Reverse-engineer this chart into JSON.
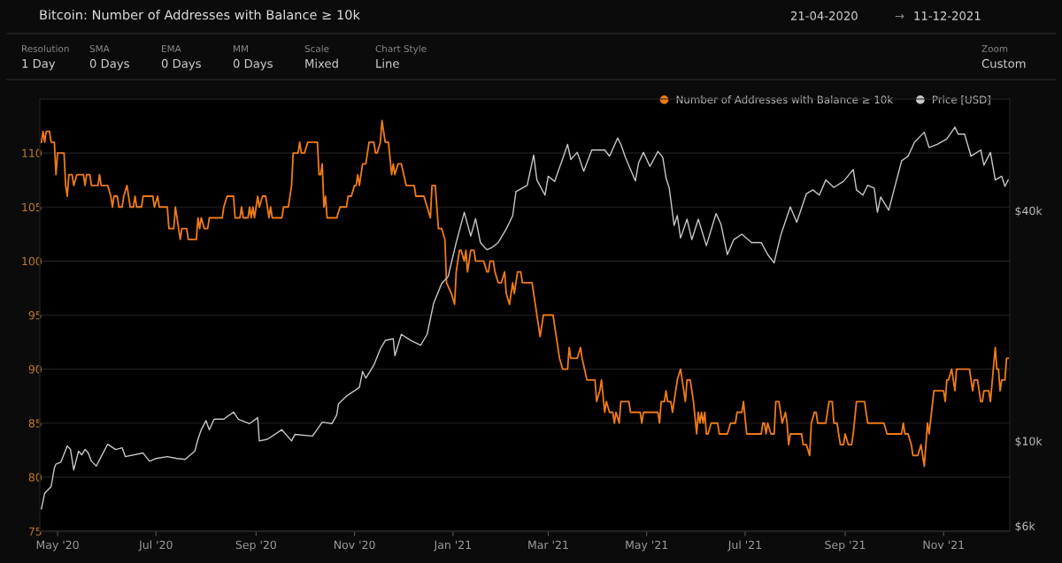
{
  "chart_data": {
    "type": "line",
    "title": "Bitcoin: Number of Addresses with Balance ≥ 10k",
    "annotations": [
      "21-04-2020",
      "→",
      "11-12-2021",
      "Resolution",
      "1 Day",
      "SMA",
      "0 Days",
      "EMA",
      "0 Days",
      "MM",
      "0 Days",
      "Scale",
      "Mixed",
      "Chart Style",
      "Line",
      "Zoom",
      "Custom"
    ],
    "xlim": [
      "2020-04-20",
      "2021-12-12"
    ],
    "xticks": [
      {
        "value": "2020-05-01",
        "label": "May '20"
      },
      {
        "value": "2020-07-01",
        "label": "Jul '20"
      },
      {
        "value": "2020-09-01",
        "label": "Sep '20"
      },
      {
        "value": "2020-11-01",
        "label": "Nov '20"
      },
      {
        "value": "2021-01-01",
        "label": "Jan '21"
      },
      {
        "value": "2021-03-01",
        "label": "Mar '21"
      },
      {
        "value": "2021-05-01",
        "label": "May '21"
      },
      {
        "value": "2021-07-01",
        "label": "Jul '21"
      },
      {
        "value": "2021-09-01",
        "label": "Sep '21"
      },
      {
        "value": "2021-11-01",
        "label": "Nov '21"
      }
    ],
    "ylim": [
      75,
      115
    ],
    "yticks": [
      75,
      80,
      85,
      90,
      95,
      100,
      105,
      110,
      {
        "value": 115,
        "label": null
      }
    ],
    "y2lim": [
      5810,
      78300
    ],
    "y2ticks": [
      {
        "value": 6000,
        "label": "$6k"
      },
      {
        "value": 10000,
        "label": "$10k"
      },
      {
        "value": 40000,
        "label": "$40k"
      }
    ],
    "log": "y2",
    "grid": "y",
    "legend": "top right",
    "marker": "none",
    "line_style": "solid",
    "series": [
      {
        "name": "Number of Addresses with Balance ≥ 10k",
        "color": "#f07b16",
        "x": [
          "2020-04-21",
          "2020-04-22",
          "2020-04-23",
          "2020-04-24",
          "2020-04-26",
          "2020-04-27",
          "2020-04-29",
          "2020-04-30",
          "2020-05-01",
          "2020-05-05",
          "2020-05-06",
          "2020-05-07",
          "2020-05-08",
          "2020-05-10",
          "2020-05-11",
          "2020-05-13",
          "2020-05-17",
          "2020-05-18",
          "2020-05-19",
          "2020-05-21",
          "2020-05-22",
          "2020-05-26",
          "2020-05-27",
          "2020-05-28",
          "2020-06-01",
          "2020-06-03",
          "2020-06-04",
          "2020-06-05",
          "2020-06-07",
          "2020-06-08",
          "2020-06-10",
          "2020-06-11",
          "2020-06-13",
          "2020-06-14",
          "2020-06-15",
          "2020-06-17",
          "2020-06-18",
          "2020-06-19",
          "2020-06-22",
          "2020-06-23",
          "2020-06-29",
          "2020-06-30",
          "2020-07-02",
          "2020-07-03",
          "2020-07-08",
          "2020-07-09",
          "2020-07-12",
          "2020-07-13",
          "2020-07-14",
          "2020-07-16",
          "2020-07-17",
          "2020-07-20",
          "2020-07-21",
          "2020-07-26",
          "2020-07-27",
          "2020-07-28",
          "2020-07-29",
          "2020-07-31",
          "2020-08-02",
          "2020-08-03",
          "2020-08-11",
          "2020-08-12",
          "2020-08-14",
          "2020-08-18",
          "2020-08-19",
          "2020-08-22",
          "2020-08-23",
          "2020-08-24",
          "2020-08-27",
          "2020-08-28",
          "2020-08-29",
          "2020-08-30",
          "2020-08-31",
          "2020-09-02",
          "2020-09-03",
          "2020-09-05",
          "2020-09-07",
          "2020-09-09",
          "2020-09-10",
          "2020-09-11",
          "2020-09-17",
          "2020-09-18",
          "2020-09-21",
          "2020-09-23",
          "2020-09-24",
          "2020-09-27",
          "2020-09-28",
          "2020-09-29",
          "2020-10-01",
          "2020-10-03",
          "2020-10-09",
          "2020-10-10",
          "2020-10-11",
          "2020-10-12",
          "2020-10-13",
          "2020-10-14",
          "2020-10-15",
          "2020-10-21",
          "2020-10-23",
          "2020-10-27",
          "2020-10-28",
          "2020-10-30",
          "2020-11-01",
          "2020-11-02",
          "2020-11-03",
          "2020-11-04",
          "2020-11-06",
          "2020-11-08",
          "2020-11-10",
          "2020-11-13",
          "2020-11-14",
          "2020-11-15",
          "2020-11-17",
          "2020-11-18",
          "2020-11-20",
          "2020-11-22",
          "2020-11-24",
          "2020-11-25",
          "2020-11-26",
          "2020-11-28",
          "2020-11-30",
          "2020-12-03",
          "2020-12-08",
          "2020-12-09",
          "2020-12-14",
          "2020-12-16",
          "2020-12-18",
          "2020-12-19",
          "2020-12-21",
          "2020-12-23",
          "2020-12-25",
          "2020-12-27",
          "2020-12-28",
          "2020-12-31",
          "2021-01-02",
          "2021-01-03",
          "2021-01-05",
          "2021-01-06",
          "2021-01-08",
          "2021-01-09",
          "2021-01-10",
          "2021-01-12",
          "2021-01-14",
          "2021-01-15",
          "2021-01-20",
          "2021-01-22",
          "2021-01-23",
          "2021-01-24",
          "2021-01-26",
          "2021-01-27",
          "2021-01-29",
          "2021-01-31",
          "2021-02-02",
          "2021-02-03",
          "2021-02-05",
          "2021-02-07",
          "2021-02-08",
          "2021-02-10",
          "2021-02-12",
          "2021-02-13",
          "2021-02-19",
          "2021-02-22",
          "2021-02-24",
          "2021-02-26",
          "2021-03-04",
          "2021-03-06",
          "2021-03-08",
          "2021-03-10",
          "2021-03-13",
          "2021-03-14",
          "2021-03-15",
          "2021-03-19",
          "2021-03-21",
          "2021-03-22",
          "2021-03-25",
          "2021-03-30",
          "2021-03-31",
          "2021-04-02",
          "2021-04-03",
          "2021-04-05",
          "2021-04-06",
          "2021-04-08",
          "2021-04-10",
          "2021-04-11",
          "2021-04-12",
          "2021-04-14",
          "2021-04-15",
          "2021-04-20",
          "2021-04-21",
          "2021-04-27",
          "2021-04-28",
          "2021-04-29",
          "2021-05-08",
          "2021-05-09",
          "2021-05-10",
          "2021-05-12",
          "2021-05-13",
          "2021-05-14",
          "2021-05-16",
          "2021-05-17",
          "2021-05-19",
          "2021-05-20",
          "2021-05-22",
          "2021-05-23",
          "2021-05-25",
          "2021-05-26",
          "2021-05-28",
          "2021-05-29",
          "2021-05-30",
          "2021-06-01",
          "2021-06-02",
          "2021-06-03",
          "2021-06-04",
          "2021-06-05",
          "2021-06-06",
          "2021-06-07",
          "2021-06-08",
          "2021-06-10",
          "2021-06-14",
          "2021-06-15",
          "2021-06-20",
          "2021-06-22",
          "2021-06-25",
          "2021-06-26",
          "2021-06-29",
          "2021-06-30",
          "2021-07-02",
          "2021-07-11",
          "2021-07-12",
          "2021-07-13",
          "2021-07-14",
          "2021-07-15",
          "2021-07-17",
          "2021-07-19",
          "2021-07-20",
          "2021-07-22",
          "2021-07-23",
          "2021-07-24",
          "2021-07-26",
          "2021-07-27",
          "2021-07-28",
          "2021-07-29",
          "2021-08-05",
          "2021-08-06",
          "2021-08-08",
          "2021-08-10",
          "2021-08-11",
          "2021-08-13",
          "2021-08-14",
          "2021-08-15",
          "2021-08-20",
          "2021-08-21",
          "2021-08-22",
          "2021-08-24",
          "2021-08-25",
          "2021-08-27",
          "2021-08-29",
          "2021-08-31",
          "2021-09-01",
          "2021-09-03",
          "2021-09-05",
          "2021-09-06",
          "2021-09-08",
          "2021-09-13",
          "2021-09-15",
          "2021-09-25",
          "2021-09-27",
          "2021-10-06",
          "2021-10-07",
          "2021-10-08",
          "2021-10-10",
          "2021-10-12",
          "2021-10-13",
          "2021-10-16",
          "2021-10-18",
          "2021-10-20",
          "2021-10-22",
          "2021-10-23",
          "2021-10-26",
          "2021-11-01",
          "2021-11-02",
          "2021-11-03",
          "2021-11-04",
          "2021-11-06",
          "2021-11-08",
          "2021-11-09",
          "2021-11-17",
          "2021-11-19",
          "2021-11-20",
          "2021-11-22",
          "2021-11-24",
          "2021-11-25",
          "2021-11-26",
          "2021-11-29",
          "2021-11-30",
          "2021-12-03",
          "2021-12-04",
          "2021-12-05",
          "2021-12-06",
          "2021-12-07",
          "2021-12-09",
          "2021-12-10",
          "2021-12-11"
        ],
        "values": [
          111,
          112,
          111,
          112,
          112,
          111,
          111,
          108,
          110,
          110,
          107,
          106,
          108,
          108,
          107,
          108,
          108,
          107,
          108,
          108,
          107,
          107,
          108,
          107,
          107,
          106,
          105,
          106,
          106,
          105,
          105,
          106,
          107,
          106,
          105,
          105,
          106,
          105,
          105,
          106,
          106,
          105,
          106,
          105,
          105,
          103,
          103,
          105,
          104,
          102,
          103,
          103,
          102,
          102,
          104,
          103,
          104,
          103,
          103,
          104,
          104,
          105,
          106,
          106,
          104,
          104,
          105,
          104,
          104,
          105,
          104,
          105,
          104,
          106,
          105,
          106,
          106,
          104,
          105,
          104,
          104,
          105,
          105,
          107,
          110,
          110,
          111,
          110,
          110,
          111,
          111,
          108,
          108,
          109,
          105,
          106,
          104,
          104,
          105,
          105,
          106,
          106,
          107,
          107,
          108,
          107,
          109,
          109,
          111,
          111,
          110,
          110,
          111,
          113,
          111,
          111,
          108,
          109,
          108,
          109,
          109,
          107,
          107,
          106,
          106,
          105,
          104,
          107,
          107,
          103,
          103,
          102,
          98,
          97,
          96,
          99,
          101,
          101,
          100,
          101,
          99,
          101,
          101,
          100,
          100,
          99,
          99,
          100,
          100,
          99,
          98,
          98,
          99,
          97,
          96,
          98,
          97,
          99,
          99,
          98,
          98,
          95,
          93,
          95,
          95,
          93,
          91,
          90,
          90,
          92,
          91,
          91,
          92,
          91,
          89,
          89,
          87,
          88,
          89,
          86,
          87,
          86,
          86,
          85,
          86,
          85,
          87,
          87,
          86,
          86,
          85,
          86,
          86,
          85,
          87,
          87,
          88,
          87,
          87,
          86,
          88,
          89,
          90,
          89,
          87,
          89,
          89,
          88,
          87,
          84,
          86,
          85,
          86,
          85,
          86,
          84,
          84,
          85,
          85,
          84,
          84,
          85,
          85,
          86,
          86,
          87,
          84,
          84,
          85,
          85,
          84,
          85,
          84,
          84,
          87,
          87,
          86,
          85,
          86,
          85,
          83,
          84,
          84,
          83,
          83,
          82,
          85,
          86,
          86,
          85,
          85,
          86,
          87,
          87,
          85,
          85,
          83,
          83,
          84,
          83,
          83,
          84,
          87,
          87,
          85,
          85,
          84,
          84,
          85,
          84,
          84,
          83,
          82,
          82,
          83,
          81,
          85,
          84,
          88,
          88,
          87,
          89,
          89,
          90,
          88,
          90,
          90,
          88,
          89,
          89,
          87,
          87,
          88,
          88,
          87,
          92,
          90,
          90,
          88,
          89,
          89,
          91,
          91
        ]
      },
      {
        "name": "Price [USD]",
        "color": "#c8c8c8",
        "axis": "y2",
        "x": [
          "2020-04-21",
          "2020-04-23",
          "2020-04-27",
          "2020-04-29",
          "2020-04-30",
          "2020-05-03",
          "2020-05-07",
          "2020-05-09",
          "2020-05-11",
          "2020-05-14",
          "2020-05-16",
          "2020-05-18",
          "2020-05-20",
          "2020-05-22",
          "2020-05-25",
          "2020-05-28",
          "2020-06-01",
          "2020-06-06",
          "2020-06-10",
          "2020-06-12",
          "2020-06-23",
          "2020-06-27",
          "2020-07-01",
          "2020-07-08",
          "2020-07-14",
          "2020-07-19",
          "2020-07-25",
          "2020-07-27",
          "2020-07-29",
          "2020-08-01",
          "2020-08-03",
          "2020-08-06",
          "2020-08-12",
          "2020-08-18",
          "2020-08-21",
          "2020-08-28",
          "2020-09-02",
          "2020-09-03",
          "2020-09-08",
          "2020-09-17",
          "2020-09-23",
          "2020-09-25",
          "2020-10-06",
          "2020-10-12",
          "2020-10-18",
          "2020-10-21",
          "2020-10-22",
          "2020-10-27",
          "2020-11-04",
          "2020-11-06",
          "2020-11-08",
          "2020-11-13",
          "2020-11-17",
          "2020-11-20",
          "2020-11-25",
          "2020-11-26",
          "2020-11-30",
          "2020-12-06",
          "2020-12-12",
          "2020-12-16",
          "2020-12-20",
          "2020-12-25",
          "2020-12-29",
          "2021-01-03",
          "2021-01-08",
          "2021-01-12",
          "2021-01-15",
          "2021-01-18",
          "2021-01-22",
          "2021-01-25",
          "2021-01-29",
          "2021-02-03",
          "2021-02-07",
          "2021-02-09",
          "2021-02-16",
          "2021-02-20",
          "2021-02-22",
          "2021-02-27",
          "2021-03-01",
          "2021-03-05",
          "2021-03-11",
          "2021-03-13",
          "2021-03-15",
          "2021-03-19",
          "2021-03-23",
          "2021-03-28",
          "2021-04-05",
          "2021-04-08",
          "2021-04-13",
          "2021-04-15",
          "2021-04-18",
          "2021-04-24",
          "2021-04-26",
          "2021-04-29",
          "2021-05-03",
          "2021-05-08",
          "2021-05-11",
          "2021-05-13",
          "2021-05-15",
          "2021-05-18",
          "2021-05-20",
          "2021-05-22",
          "2021-05-26",
          "2021-05-29",
          "2021-06-02",
          "2021-06-07",
          "2021-06-13",
          "2021-06-16",
          "2021-06-20",
          "2021-06-24",
          "2021-06-29",
          "2021-07-05",
          "2021-07-11",
          "2021-07-15",
          "2021-07-19",
          "2021-07-23",
          "2021-07-29",
          "2021-08-02",
          "2021-08-08",
          "2021-08-12",
          "2021-08-16",
          "2021-08-20",
          "2021-08-25",
          "2021-08-31",
          "2021-09-06",
          "2021-09-08",
          "2021-09-12",
          "2021-09-15",
          "2021-09-19",
          "2021-09-21",
          "2021-09-23",
          "2021-09-28",
          "2021-10-02",
          "2021-10-06",
          "2021-10-10",
          "2021-10-14",
          "2021-10-20",
          "2021-10-23",
          "2021-10-28",
          "2021-11-03",
          "2021-11-08",
          "2021-11-10",
          "2021-11-14",
          "2021-11-18",
          "2021-11-24",
          "2021-11-26",
          "2021-11-30",
          "2021-12-03",
          "2021-12-07",
          "2021-12-09",
          "2021-12-11"
        ],
        "values": [
          6650,
          7300,
          7600,
          8500,
          8700,
          8800,
          9700,
          9500,
          8400,
          9400,
          9200,
          9500,
          9300,
          8850,
          8600,
          9100,
          9800,
          9500,
          9600,
          9100,
          9300,
          8850,
          9000,
          9100,
          9000,
          8950,
          9400,
          10100,
          10700,
          11300,
          10700,
          11400,
          11400,
          11900,
          11400,
          11100,
          11500,
          10000,
          10100,
          10700,
          10000,
          10400,
          10300,
          11200,
          11100,
          11700,
          12500,
          13100,
          13800,
          15200,
          14600,
          15800,
          17400,
          18300,
          18500,
          16700,
          19000,
          18300,
          17800,
          19000,
          22900,
          25800,
          26900,
          33000,
          39600,
          34300,
          38100,
          33000,
          31600,
          32000,
          33000,
          35800,
          38800,
          44800,
          46600,
          55900,
          48100,
          43900,
          49200,
          47700,
          56200,
          59600,
          54400,
          56800,
          50700,
          57600,
          57600,
          55500,
          61900,
          59600,
          54900,
          47800,
          53300,
          56800,
          52200,
          57100,
          55100,
          48700,
          45800,
          36600,
          38800,
          33900,
          38000,
          33600,
          38000,
          32400,
          39300,
          36900,
          30700,
          33600,
          34700,
          33000,
          33000,
          30700,
          29200,
          34400,
          40900,
          37300,
          44300,
          45300,
          43900,
          48100,
          46000,
          47700,
          51200,
          45300,
          43900,
          46600,
          45800,
          39600,
          43400,
          40100,
          46600,
          54000,
          55500,
          60400,
          64100,
          58500,
          59600,
          61600,
          66100,
          63400,
          63400,
          55500,
          57600,
          52600,
          56800,
          48100,
          49200,
          46300,
          48100
        ]
      }
    ]
  }
}
